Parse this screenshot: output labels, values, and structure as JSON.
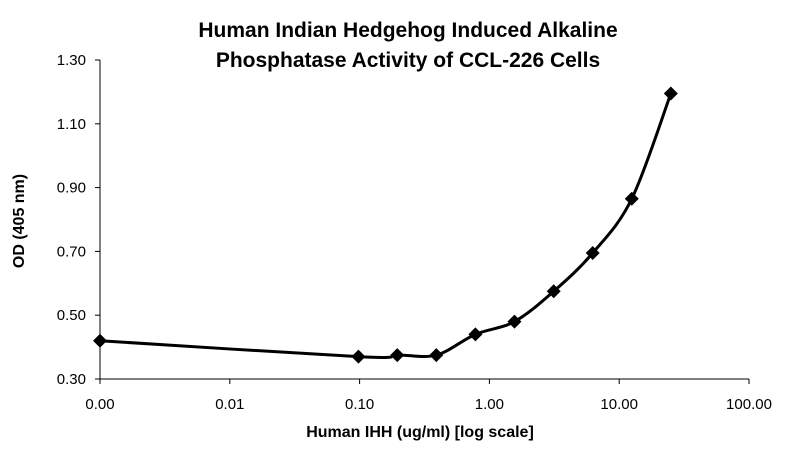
{
  "chart_data": {
    "type": "line",
    "title_lines": [
      "Human Indian Hedgehog Induced Alkaline",
      "Phosphatase Activity of CCL-226 Cells"
    ],
    "xlabel": "Human IHH (ug/ml) [log scale]",
    "ylabel": "OD (405 nm)",
    "x_scale": "log",
    "x_ticks": [
      "0.00",
      "0.01",
      "0.10",
      "1.00",
      "10.00",
      "100.00"
    ],
    "x_tick_values": [
      0.001,
      0.01,
      0.1,
      1,
      10,
      100
    ],
    "y_ticks": [
      "0.30",
      "0.50",
      "0.70",
      "0.90",
      "1.10",
      "1.30"
    ],
    "y_tick_values": [
      0.3,
      0.5,
      0.7,
      0.9,
      1.1,
      1.3
    ],
    "xlim": [
      0.001,
      100
    ],
    "ylim": [
      0.3,
      1.3
    ],
    "grid": false,
    "marker": "diamond",
    "line_color": "#000000",
    "series": [
      {
        "x": [
          0.001,
          0.098,
          0.195,
          0.39,
          0.78,
          1.56,
          3.13,
          6.25,
          12.5,
          25
        ],
        "y": [
          0.42,
          0.37,
          0.375,
          0.375,
          0.44,
          0.48,
          0.575,
          0.695,
          0.865,
          1.195
        ]
      }
    ]
  }
}
